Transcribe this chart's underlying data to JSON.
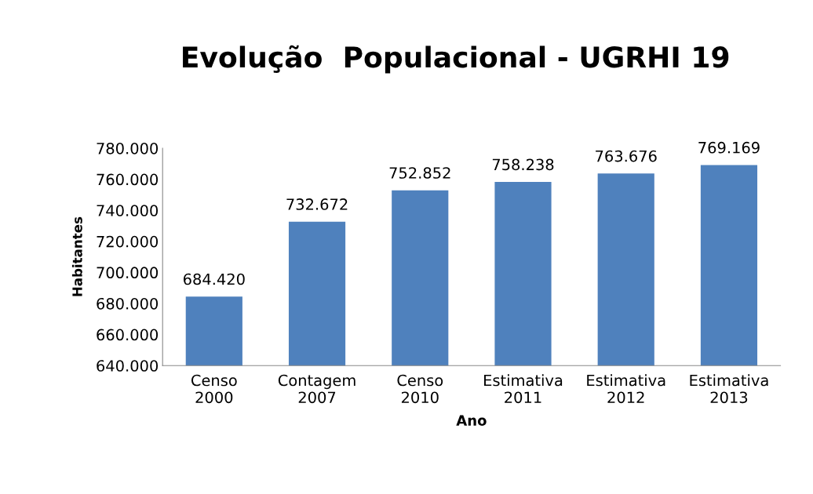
{
  "chart_data": {
    "type": "bar",
    "title": "Evolução  Populacional - UGRHI 19",
    "xlabel": "Ano",
    "ylabel": "Habitantes",
    "categories": [
      "Censo\n2000",
      "Contagem\n2007",
      "Censo\n2010",
      "Estimativa\n2011",
      "Estimativa\n2012",
      "Estimativa\n2013"
    ],
    "values": [
      684420,
      732672,
      752852,
      758238,
      763676,
      769169
    ],
    "value_labels": [
      "684.420",
      "732.672",
      "752.852",
      "758.238",
      "763.676",
      "769.169"
    ],
    "color": "#4f81bd",
    "ylim": [
      640000,
      780000
    ],
    "yticks": [
      {
        "value": 640000,
        "label": "640.000"
      },
      {
        "value": 660000,
        "label": "660.000"
      },
      {
        "value": 680000,
        "label": "680.000"
      },
      {
        "value": 700000,
        "label": "700.000"
      },
      {
        "value": 720000,
        "label": "720.000"
      },
      {
        "value": 740000,
        "label": "740.000"
      },
      {
        "value": 760000,
        "label": "760.000"
      },
      {
        "value": 780000,
        "label": "780.000"
      }
    ],
    "grid": false,
    "legend": false
  }
}
